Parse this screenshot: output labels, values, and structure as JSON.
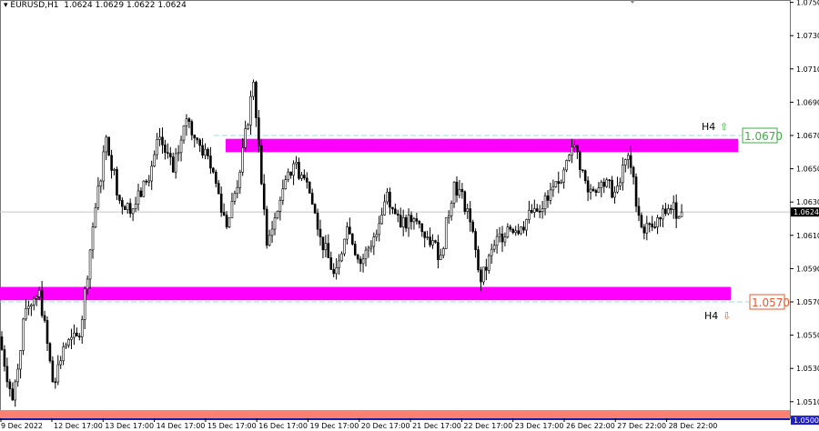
{
  "header": {
    "symbol_timeframe": "EURUSD,H1",
    "ohlc": "1.0624 1.0629 1.0622 1.0624"
  },
  "colors": {
    "zone": "#ff00ff",
    "bottom_zone": "#fa8072",
    "resistance_label": "#3cb043",
    "support_label": "#e8582c",
    "dashed_level": "#9fd8e0",
    "current_price_bg": "#000000",
    "axis_bottom": "#1a1aa0"
  },
  "chart_data": {
    "type": "candlestick",
    "symbol": "EURUSD",
    "timeframe": "H1",
    "ylim": [
      1.05,
      1.075
    ],
    "y_ticks": [
      "1.0750",
      "1.0730",
      "1.0710",
      "1.0690",
      "1.0670",
      "1.0650",
      "1.0630",
      "1.0610",
      "1.0590",
      "1.0570",
      "1.0550",
      "1.0530",
      "1.0510"
    ],
    "x_ticks": [
      "9 Dec 2022",
      "12 Dec 17:00",
      "13 Dec 17:00",
      "14 Dec 17:00",
      "15 Dec 17:00",
      "16 Dec 17:00",
      "19 Dec 17:00",
      "20 Dec 17:00",
      "21 Dec 17:00",
      "22 Dec 17:00",
      "23 Dec 17:00",
      "26 Dec 22:00",
      "27 Dec 22:00",
      "28 Dec 22:00"
    ],
    "current_price": "1.0624",
    "bottom_price": "1.0500",
    "approx_closes": [
      1.0549,
      1.0511,
      1.0566,
      1.0577,
      1.0522,
      1.0544,
      1.0549,
      1.0615,
      1.0669,
      1.0631,
      1.0626,
      1.0642,
      1.0669,
      1.0648,
      1.068,
      1.0664,
      1.0648,
      1.0615,
      1.0648,
      1.0702,
      1.0604,
      1.0631,
      1.0653,
      1.0642,
      1.0609,
      1.0587,
      1.0615,
      1.0593,
      1.0609,
      1.0636,
      1.0615,
      1.062,
      1.0609,
      1.0598,
      1.0642,
      1.0626,
      1.0582,
      1.0604,
      1.0615,
      1.0615,
      1.0626,
      1.0631,
      1.0642,
      1.0664,
      1.0636,
      1.0642,
      1.0636,
      1.0658,
      1.0615,
      1.0615,
      1.0626,
      1.0624
    ],
    "zones": [
      {
        "name": "resistance",
        "from": 1.066,
        "to": 1.0668
      },
      {
        "name": "support",
        "from": 1.0571,
        "to": 1.0579
      },
      {
        "name": "bottom",
        "from": 1.05,
        "to": 1.0505
      }
    ],
    "levels": [
      {
        "name": "resistance",
        "value": "1.0670",
        "label": "H4",
        "direction": "up"
      },
      {
        "name": "support",
        "value": "1.0570",
        "label": "H4",
        "direction": "down"
      }
    ]
  }
}
